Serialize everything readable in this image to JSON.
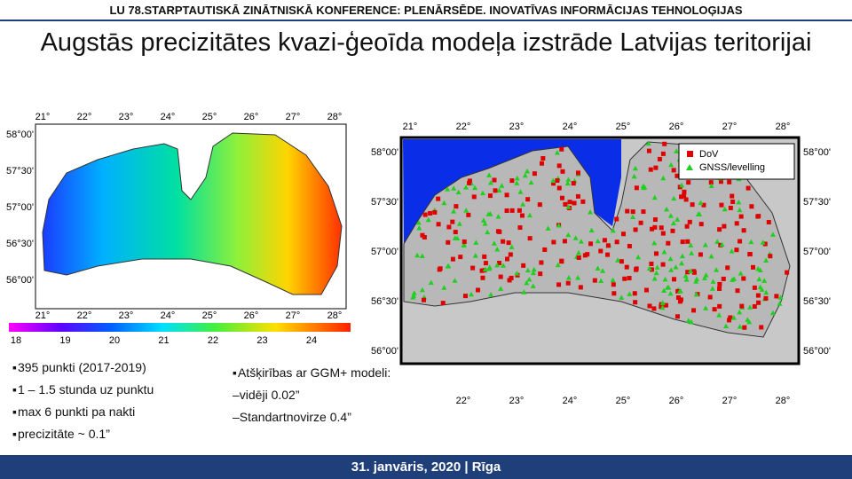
{
  "header": {
    "title": "LU 78.STARPTAUTISKĀ ZINĀTNISKĀ KONFERENCE: PLENĀRSĒDE. INOVATĪVAS INFORMĀCIJAS TEHNOLOĢIJAS"
  },
  "title": "Augstās precizitātes kvazi-ģeoīda modeļa izstrāde Latvijas teritorijai",
  "left_map": {
    "lon_labels_top": [
      "21°",
      "22°",
      "23°",
      "24°",
      "25°",
      "26°",
      "27°",
      "28°"
    ],
    "lon_labels_bottom": [
      "21°",
      "22°",
      "23°",
      "24°",
      "25°",
      "26°",
      "27°",
      "28°"
    ],
    "lat_labels": [
      "58°00'",
      "57°30'",
      "57°00'",
      "56°30'",
      "56°00'"
    ],
    "colorbar_labels": [
      "18",
      "19",
      "20",
      "21",
      "22",
      "23",
      "24"
    ]
  },
  "right_map": {
    "lon_labels_top": [
      "21°",
      "22°",
      "23°",
      "24°",
      "25°",
      "26°",
      "27°",
      "28°"
    ],
    "lon_labels_bottom": [
      "22°",
      "23°",
      "24°",
      "25°",
      "26°",
      "27°",
      "28°"
    ],
    "lat_labels_left": [
      "58°00'",
      "57°30'",
      "57°00'",
      "56°30'",
      "56°00'"
    ],
    "lat_labels_right": [
      "58°00'",
      "57°30'",
      "57°00'",
      "56°30'",
      "56°00'"
    ],
    "legend": [
      "DoV",
      "GNSS/levelling"
    ]
  },
  "bullets_left": [
    "395 punkti (2017-2019)",
    "1 – 1.5 stunda uz punktu",
    "max 6 punkti pa nakti",
    "precizitāte  ~ 0.1”"
  ],
  "bullets_right": [
    "Atšķirības ar GGM+ modeli:",
    "–vidēji 0.02”",
    "–Standartnovirze  0.4”"
  ],
  "footer": "31. janvāris, 2020 | Rīga"
}
